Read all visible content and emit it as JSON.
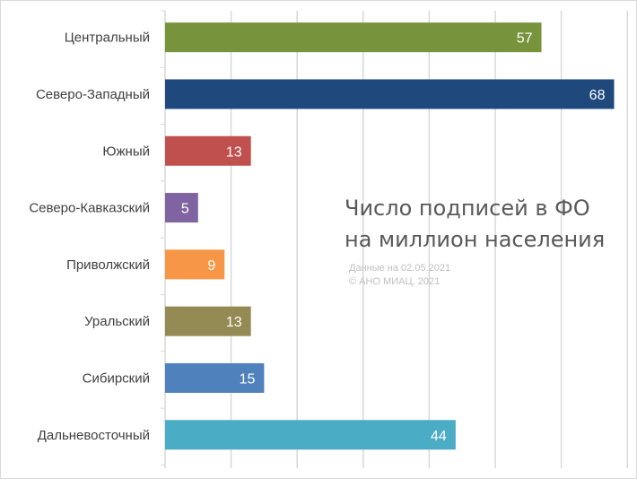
{
  "chart_data": {
    "type": "bar",
    "orientation": "horizontal",
    "title_lines": [
      "Число подписей в ФО",
      "на миллион населения"
    ],
    "note_lines": [
      "Данные на 02.05.2021",
      "© АНО МИАЦ, 2021"
    ],
    "categories": [
      "Центральный",
      "Северо-Западный",
      "Южный",
      "Северо-Кавказский",
      "Приволжский",
      "Уральский",
      "Сибирский",
      "Дальневосточный"
    ],
    "values": [
      57,
      68,
      13,
      5,
      9,
      13,
      15,
      44
    ],
    "colors": [
      "#77933c",
      "#1f497d",
      "#c0504d",
      "#8064a2",
      "#f79646",
      "#948a54",
      "#4f81bd",
      "#4bacc6"
    ],
    "xlim": [
      0,
      70
    ],
    "x_gridlines": true,
    "x_tick_labels_visible": false,
    "value_labels": true
  }
}
